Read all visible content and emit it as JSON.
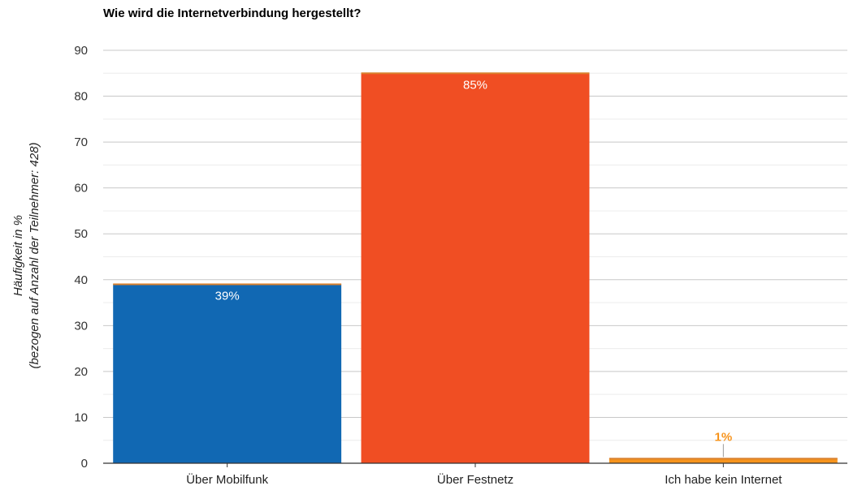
{
  "chart_data": {
    "type": "bar",
    "title": "Wie wird die Internetverbindung hergestellt?",
    "ylabel": "Häufigkeit in %",
    "ylabel_sub": "(bezogen auf Anzahl der Teilnehmer: 428)",
    "xlabel": "",
    "categories": [
      "Über Mobilfunk",
      "Über Festnetz",
      "Ich habe kein Internet"
    ],
    "values": [
      39,
      85,
      1
    ],
    "data_labels": [
      "39%",
      "85%",
      "1%"
    ],
    "colors": [
      "#1168b3",
      "#f04e23",
      "#f7941d"
    ],
    "label_colors": [
      "#ffffff",
      "#ffffff",
      "#f7941d"
    ],
    "ylim": [
      0,
      90
    ],
    "yticks": [
      0,
      10,
      20,
      30,
      40,
      50,
      60,
      70,
      80,
      90
    ],
    "grid": true,
    "legend": "none"
  }
}
